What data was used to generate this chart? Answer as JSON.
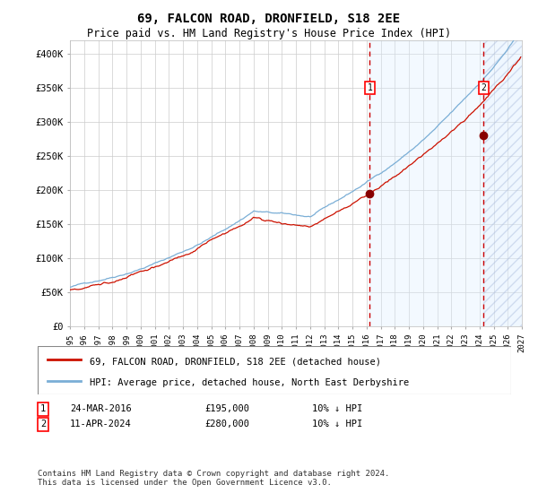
{
  "title": "69, FALCON ROAD, DRONFIELD, S18 2EE",
  "subtitle": "Price paid vs. HM Land Registry's House Price Index (HPI)",
  "legend_line1": "69, FALCON ROAD, DRONFIELD, S18 2EE (detached house)",
  "legend_line2": "HPI: Average price, detached house, North East Derbyshire",
  "annotation1_label": "1",
  "annotation1_date": "24-MAR-2016",
  "annotation1_price": 195000,
  "annotation1_price_str": "£195,000",
  "annotation1_note": "10% ↓ HPI",
  "annotation1_year": 2016.23,
  "annotation2_label": "2",
  "annotation2_date": "11-APR-2024",
  "annotation2_price": 280000,
  "annotation2_price_str": "£280,000",
  "annotation2_note": "10% ↓ HPI",
  "annotation2_year": 2024.28,
  "xmin": 1995,
  "xmax": 2027,
  "ymin": 0,
  "ymax": 420000,
  "yticks": [
    0,
    50000,
    100000,
    150000,
    200000,
    250000,
    300000,
    350000,
    400000
  ],
  "ytick_labels": [
    "£0",
    "£50K",
    "£100K",
    "£150K",
    "£200K",
    "£250K",
    "£300K",
    "£350K",
    "£400K"
  ],
  "hpi_color": "#7aaed6",
  "price_color": "#cc1100",
  "dot_color": "#880000",
  "vline_color": "#cc0000",
  "shade_color": "#ddeeff",
  "background_color": "#ffffff",
  "grid_color": "#cccccc",
  "footer_text": "Contains HM Land Registry data © Crown copyright and database right 2024.\nThis data is licensed under the Open Government Licence v3.0."
}
